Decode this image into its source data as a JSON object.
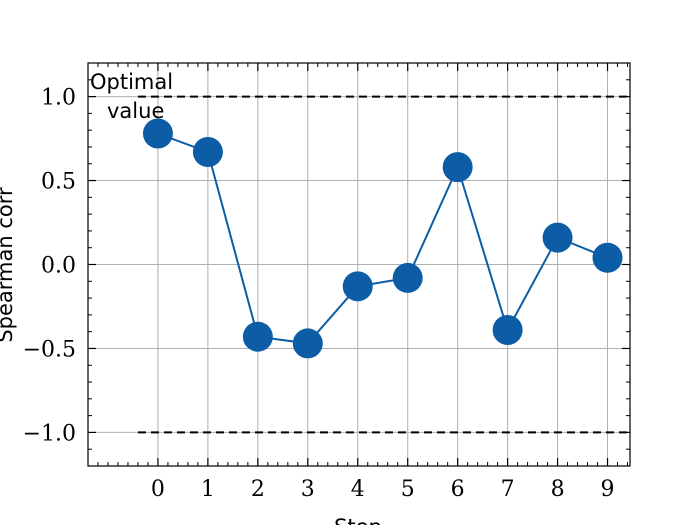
{
  "chart_data": {
    "type": "line",
    "title": "",
    "xlabel": "Step",
    "ylabel": "Spearman corr",
    "x": [
      0,
      1,
      2,
      3,
      4,
      5,
      6,
      7,
      8,
      9
    ],
    "series": [
      {
        "values": [
          0.78,
          0.67,
          -0.43,
          -0.47,
          -0.13,
          -0.08,
          0.58,
          -0.39,
          0.16,
          0.04
        ]
      }
    ],
    "xlim": [
      -1.4,
      9.45
    ],
    "ylim": [
      -1.2,
      1.2
    ],
    "xticks": [
      0,
      1,
      2,
      3,
      4,
      5,
      6,
      7,
      8,
      9
    ],
    "yticks": [
      1.0,
      0.5,
      0.0,
      -0.5,
      -1.0
    ],
    "ytick_labels": [
      "1.0",
      "0.5",
      "0.0",
      "−0.5",
      "−1.0"
    ],
    "grid": true,
    "reference_lines": [
      {
        "y": 1.0,
        "xmin": -0.4,
        "xmax": 9.45,
        "style": "dashed"
      },
      {
        "y": -1.0,
        "xmin": -0.4,
        "xmax": 9.45,
        "style": "dashed"
      }
    ],
    "annotations": [
      {
        "lines": [
          "Optimal",
          "value"
        ],
        "anchor_x": -0.45,
        "anchor_y": 1.0
      }
    ],
    "colors": {
      "series": "#0C5DA5",
      "grid": "#b0b0b0",
      "reference": "#000000"
    }
  }
}
